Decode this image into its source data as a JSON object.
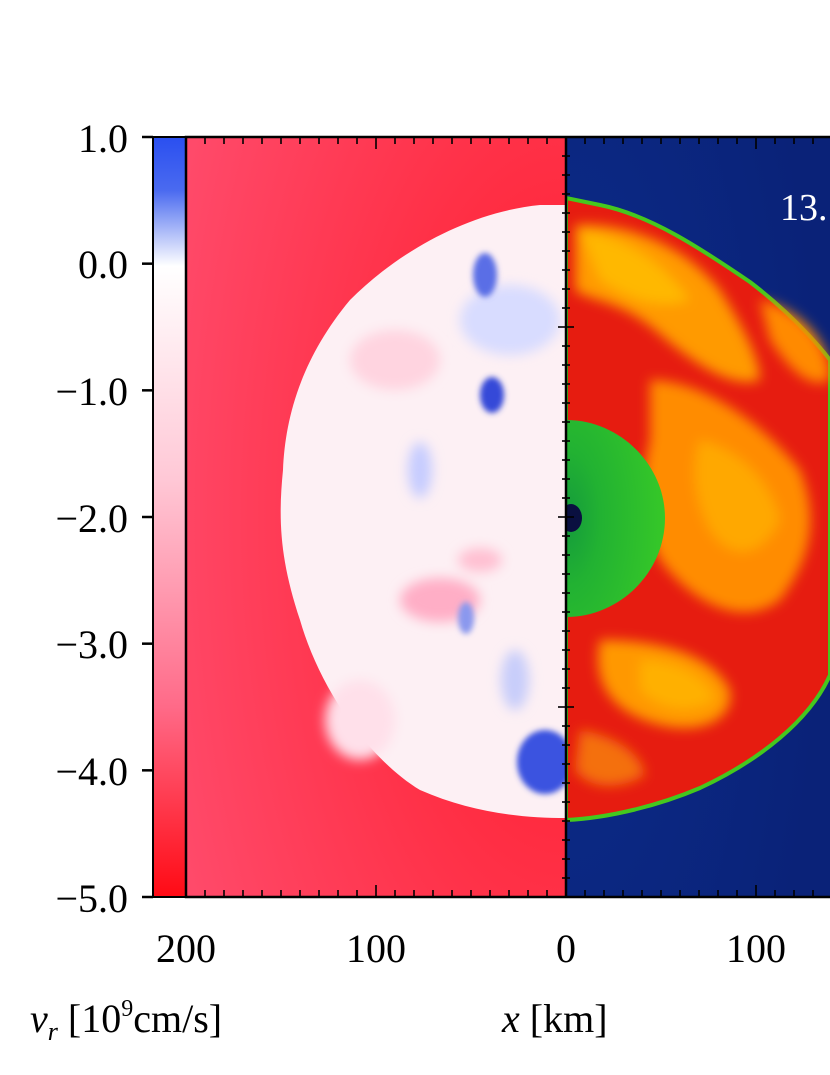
{
  "figure": {
    "colorbar": {
      "ticks": [
        "1.0",
        "0.0",
        "−1.0",
        "−2.0",
        "−3.0",
        "−4.0",
        "−5.0"
      ],
      "label_symbol": "v",
      "label_subscript": "r",
      "label_open": " [10",
      "label_exponent": "9",
      "label_unit": "cm/s]",
      "colors": {
        "top": "#3a5ff0",
        "mid": "#ffffff",
        "bottom": "#ff0a14"
      }
    },
    "x_axis": {
      "ticks": [
        "200",
        "100",
        "0",
        "100"
      ],
      "label_symbol": "x",
      "label_unit": " [km]"
    },
    "time_label": "13.",
    "panels": {
      "left_colors": {
        "background": "#ff2a3c",
        "blob": "#fdf0f4",
        "blue_patch": "#3b52e0"
      },
      "right_colors": {
        "background": "#0a2a86",
        "outer": "#e61c10",
        "shock_edge": "#45c81e",
        "yellow": "#ffb000",
        "core": "#2ec52a",
        "center": "#0a1040"
      }
    }
  }
}
